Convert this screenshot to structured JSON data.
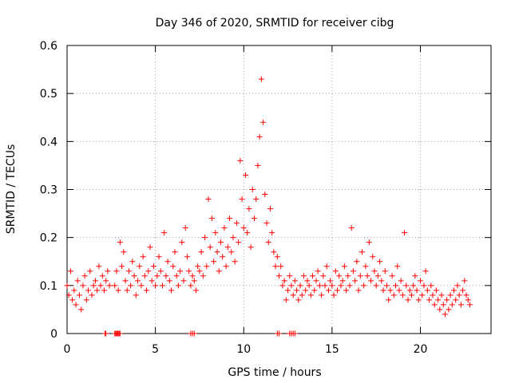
{
  "chart_data": {
    "type": "scatter",
    "title": "Day 346 of 2020, SRMTID for receiver cibg",
    "xlabel": "GPS time / hours",
    "ylabel": "SRMTID / TECUs",
    "xlim": [
      0,
      24
    ],
    "ylim": [
      0,
      0.6
    ],
    "xticks": [
      0,
      5,
      10,
      15,
      20
    ],
    "xtick_labels": [
      "0",
      "5",
      "10",
      "15",
      "20"
    ],
    "yticks": [
      0,
      0.1,
      0.2,
      0.3,
      0.4,
      0.5,
      0.6
    ],
    "ytick_labels": [
      "0",
      "0.1",
      "0.2",
      "0.3",
      "0.4",
      "0.5",
      "0.6"
    ],
    "grid": true,
    "marker": "+",
    "color": "#ff0000",
    "series": [
      {
        "name": "SRMTID",
        "x": [
          0.0,
          0.1,
          0.2,
          0.3,
          0.4,
          0.5,
          0.6,
          0.7,
          0.8,
          0.9,
          1.0,
          1.1,
          1.2,
          1.3,
          1.4,
          1.5,
          1.6,
          1.7,
          1.8,
          1.9,
          2.0,
          2.1,
          2.2,
          2.3,
          2.4,
          2.7,
          2.8,
          2.9,
          3.0,
          3.1,
          3.2,
          3.3,
          3.4,
          3.5,
          3.6,
          3.7,
          3.8,
          3.9,
          4.0,
          4.1,
          4.2,
          4.3,
          4.4,
          4.5,
          4.6,
          4.7,
          4.8,
          4.9,
          5.0,
          5.1,
          5.2,
          5.3,
          5.4,
          5.5,
          5.6,
          5.7,
          5.8,
          5.9,
          6.0,
          6.1,
          6.2,
          6.3,
          6.4,
          6.5,
          6.6,
          6.7,
          6.8,
          6.9,
          7.0,
          7.1,
          7.2,
          7.3,
          7.4,
          7.5,
          7.6,
          7.7,
          7.8,
          7.9,
          8.0,
          8.1,
          8.2,
          8.3,
          8.4,
          8.5,
          8.6,
          8.7,
          8.8,
          8.9,
          9.0,
          9.1,
          9.2,
          9.3,
          9.4,
          9.5,
          9.6,
          9.7,
          9.8,
          9.9,
          10.0,
          10.1,
          10.2,
          10.3,
          10.4,
          10.5,
          10.6,
          10.7,
          10.8,
          10.9,
          11.0,
          11.1,
          11.2,
          11.3,
          11.4,
          11.5,
          11.6,
          11.7,
          11.8,
          11.9,
          12.0,
          12.1,
          12.2,
          12.3,
          12.4,
          12.5,
          12.6,
          12.7,
          12.8,
          12.9,
          13.0,
          13.1,
          13.2,
          13.3,
          13.4,
          13.5,
          13.6,
          13.7,
          13.8,
          13.9,
          14.0,
          14.1,
          14.2,
          14.3,
          14.4,
          14.5,
          14.6,
          14.7,
          14.8,
          14.9,
          15.0,
          15.1,
          15.2,
          15.3,
          15.4,
          15.5,
          15.6,
          15.7,
          15.8,
          15.9,
          16.0,
          16.1,
          16.2,
          16.3,
          16.4,
          16.5,
          16.6,
          16.7,
          16.8,
          16.9,
          17.0,
          17.1,
          17.2,
          17.3,
          17.4,
          17.5,
          17.6,
          17.7,
          17.8,
          17.9,
          18.0,
          18.1,
          18.2,
          18.3,
          18.4,
          18.5,
          18.6,
          18.7,
          18.8,
          18.9,
          19.0,
          19.1,
          19.2,
          19.3,
          19.4,
          19.5,
          19.6,
          19.7,
          19.8,
          19.9,
          20.0,
          20.1,
          20.2,
          20.3,
          20.4,
          20.5,
          20.6,
          20.7,
          20.8,
          20.9,
          21.0,
          21.1,
          21.2,
          21.3,
          21.4,
          21.5,
          21.6,
          21.7,
          21.8,
          21.9,
          22.0,
          22.1,
          22.2,
          22.3,
          22.4,
          22.5,
          22.6,
          22.7,
          22.8,
          2.15,
          2.2,
          2.7,
          2.75,
          2.8,
          2.85,
          2.9,
          2.95,
          3.0,
          7.0,
          7.1,
          7.2,
          11.9,
          12.0,
          12.6,
          12.7,
          12.8,
          12.9
        ],
        "y": [
          0.1,
          0.08,
          0.13,
          0.07,
          0.09,
          0.06,
          0.11,
          0.08,
          0.05,
          0.1,
          0.12,
          0.07,
          0.09,
          0.13,
          0.08,
          0.1,
          0.11,
          0.09,
          0.14,
          0.1,
          0.12,
          0.09,
          0.11,
          0.13,
          0.1,
          0.1,
          0.13,
          0.09,
          0.19,
          0.14,
          0.17,
          0.11,
          0.09,
          0.13,
          0.1,
          0.15,
          0.12,
          0.08,
          0.11,
          0.14,
          0.1,
          0.16,
          0.12,
          0.09,
          0.13,
          0.18,
          0.11,
          0.14,
          0.1,
          0.12,
          0.16,
          0.13,
          0.1,
          0.21,
          0.12,
          0.15,
          0.11,
          0.09,
          0.14,
          0.17,
          0.12,
          0.1,
          0.13,
          0.19,
          0.11,
          0.22,
          0.16,
          0.13,
          0.1,
          0.12,
          0.11,
          0.09,
          0.14,
          0.13,
          0.17,
          0.12,
          0.2,
          0.14,
          0.28,
          0.18,
          0.24,
          0.15,
          0.21,
          0.17,
          0.13,
          0.19,
          0.16,
          0.22,
          0.14,
          0.18,
          0.24,
          0.17,
          0.2,
          0.15,
          0.23,
          0.19,
          0.36,
          0.28,
          0.22,
          0.33,
          0.21,
          0.26,
          0.18,
          0.3,
          0.24,
          0.28,
          0.35,
          0.41,
          0.53,
          0.44,
          0.29,
          0.23,
          0.19,
          0.26,
          0.21,
          0.17,
          0.14,
          0.16,
          0.12,
          0.14,
          0.1,
          0.11,
          0.07,
          0.09,
          0.12,
          0.1,
          0.08,
          0.11,
          0.09,
          0.07,
          0.1,
          0.08,
          0.12,
          0.09,
          0.11,
          0.1,
          0.08,
          0.12,
          0.09,
          0.11,
          0.13,
          0.1,
          0.08,
          0.12,
          0.1,
          0.14,
          0.09,
          0.11,
          0.1,
          0.08,
          0.13,
          0.09,
          0.12,
          0.1,
          0.11,
          0.14,
          0.09,
          0.12,
          0.1,
          0.22,
          0.13,
          0.11,
          0.15,
          0.09,
          0.12,
          0.17,
          0.1,
          0.14,
          0.12,
          0.19,
          0.11,
          0.16,
          0.13,
          0.1,
          0.12,
          0.15,
          0.11,
          0.09,
          0.13,
          0.1,
          0.07,
          0.09,
          0.12,
          0.08,
          0.1,
          0.14,
          0.09,
          0.11,
          0.08,
          0.21,
          0.1,
          0.07,
          0.09,
          0.08,
          0.1,
          0.12,
          0.09,
          0.07,
          0.11,
          0.08,
          0.1,
          0.13,
          0.09,
          0.07,
          0.1,
          0.08,
          0.06,
          0.09,
          0.07,
          0.05,
          0.08,
          0.06,
          0.04,
          0.07,
          0.05,
          0.08,
          0.06,
          0.09,
          0.07,
          0.1,
          0.08,
          0.06,
          0.09,
          0.11,
          0.08,
          0.07,
          0.06,
          0.0,
          0.0,
          0.0,
          0.0,
          0.0,
          0.0,
          0.0,
          0.0,
          0.0,
          0.0,
          0.0,
          0.0,
          0.0,
          0.0,
          0.0,
          0.0,
          0.0,
          0.0
        ]
      }
    ]
  }
}
